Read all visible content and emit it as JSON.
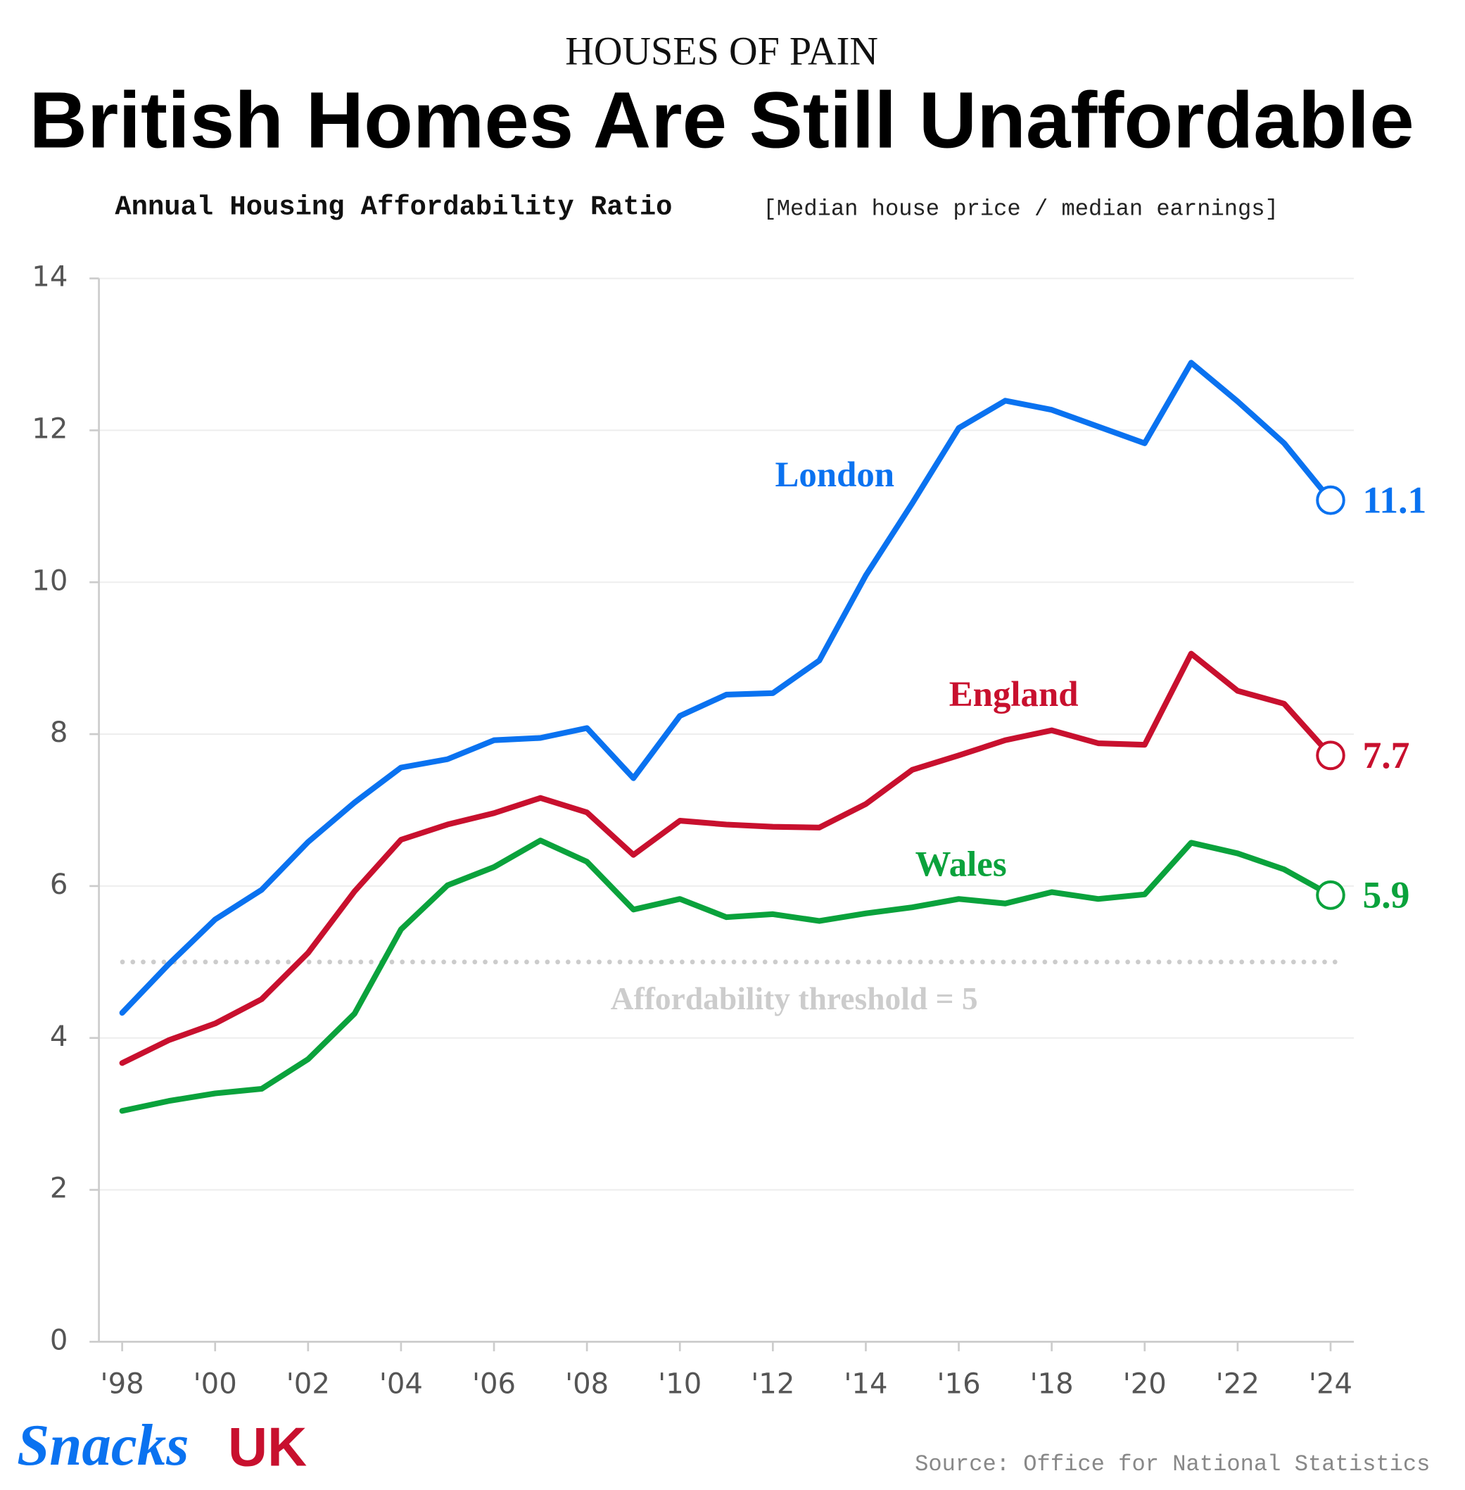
{
  "chart_data": {
    "type": "line",
    "kicker": "HOUSES OF PAIN",
    "title": "British Homes Are Still Unaffordable",
    "subtitle": "Annual Housing Affordability Ratio",
    "subtitle_note": "[Median house price / median earnings]",
    "x": [
      1998,
      1999,
      2000,
      2001,
      2002,
      2003,
      2004,
      2005,
      2006,
      2007,
      2008,
      2009,
      2010,
      2011,
      2012,
      2013,
      2014,
      2015,
      2016,
      2017,
      2018,
      2019,
      2020,
      2021,
      2022,
      2023,
      2024
    ],
    "series": [
      {
        "name": "London",
        "color": "#0a72f0",
        "end_label": "11.1",
        "values": [
          4.33,
          4.97,
          5.56,
          5.95,
          6.58,
          7.1,
          7.56,
          7.67,
          7.92,
          7.95,
          8.08,
          7.42,
          8.24,
          8.52,
          8.54,
          8.97,
          10.09,
          11.04,
          12.03,
          12.39,
          12.27,
          12.05,
          11.83,
          12.89,
          12.38,
          11.83,
          11.08
        ]
      },
      {
        "name": "England",
        "color": "#c8102e",
        "end_label": "7.7",
        "values": [
          3.67,
          3.97,
          4.19,
          4.51,
          5.12,
          5.93,
          6.61,
          6.81,
          6.96,
          7.16,
          6.97,
          6.41,
          6.86,
          6.81,
          6.78,
          6.77,
          7.08,
          7.53,
          7.72,
          7.92,
          8.05,
          7.88,
          7.86,
          9.06,
          8.57,
          8.4,
          7.72
        ]
      },
      {
        "name": "Wales",
        "color": "#0aa23c",
        "end_label": "5.9",
        "values": [
          3.04,
          3.17,
          3.27,
          3.33,
          3.72,
          4.32,
          5.43,
          6.01,
          6.25,
          6.6,
          6.32,
          5.69,
          5.83,
          5.59,
          5.63,
          5.54,
          5.64,
          5.72,
          5.83,
          5.77,
          5.92,
          5.83,
          5.89,
          6.57,
          6.43,
          6.22,
          5.88
        ]
      }
    ],
    "threshold": {
      "value": 5,
      "label": "Affordability threshold = 5",
      "color": "#cccccc"
    },
    "xlim": [
      1997.5,
      2024.5
    ],
    "xticks": [
      {
        "value": 1998,
        "label": "'98"
      },
      {
        "value": 2000,
        "label": "'00"
      },
      {
        "value": 2002,
        "label": "'02"
      },
      {
        "value": 2004,
        "label": "'04"
      },
      {
        "value": 2006,
        "label": "'06"
      },
      {
        "value": 2008,
        "label": "'08"
      },
      {
        "value": 2010,
        "label": "'10"
      },
      {
        "value": 2012,
        "label": "'12"
      },
      {
        "value": 2014,
        "label": "'14"
      },
      {
        "value": 2016,
        "label": "'16"
      },
      {
        "value": 2018,
        "label": "'18"
      },
      {
        "value": 2020,
        "label": "'20"
      },
      {
        "value": 2022,
        "label": "'22"
      },
      {
        "value": 2024,
        "label": "'24"
      }
    ],
    "ylim": [
      0,
      14
    ],
    "yticks": [
      0,
      2,
      4,
      6,
      8,
      10,
      12,
      14
    ],
    "grid": true,
    "source": "Source: Office for National Statistics",
    "logo": {
      "brand": "Snacks",
      "region": "UK"
    }
  }
}
